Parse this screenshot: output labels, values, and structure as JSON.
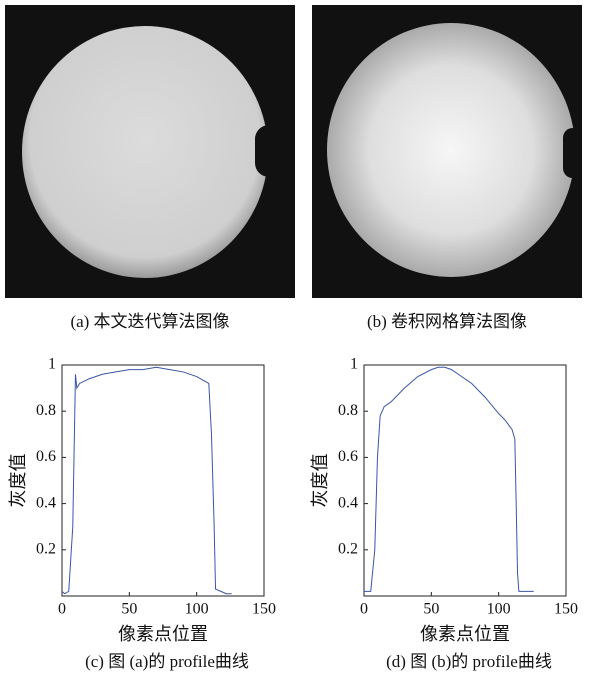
{
  "images": [
    {
      "caption": "(a) 本文迭代算法图像"
    },
    {
      "caption": "(b) 卷积网格算法图像"
    }
  ],
  "chart_data": [
    {
      "type": "line",
      "caption": "(c) 图 (a)的 profile曲线",
      "xlabel": "像素点位置",
      "ylabel": "灰度值",
      "xlim": [
        0,
        150
      ],
      "ylim": [
        0,
        1
      ],
      "xticks": [
        0,
        50,
        100,
        150
      ],
      "yticks": [
        0.2,
        0.4,
        0.6,
        0.8,
        1
      ],
      "series": [
        {
          "color": "#3a55a4",
          "x": [
            0,
            2,
            5,
            8,
            10,
            11,
            13,
            20,
            30,
            40,
            50,
            60,
            70,
            80,
            90,
            100,
            106,
            109,
            111,
            113,
            114,
            118,
            122,
            126
          ],
          "values": [
            0.02,
            0.01,
            0.02,
            0.3,
            0.96,
            0.9,
            0.92,
            0.94,
            0.96,
            0.97,
            0.98,
            0.98,
            0.99,
            0.98,
            0.97,
            0.95,
            0.93,
            0.92,
            0.7,
            0.3,
            0.03,
            0.02,
            0.01,
            0.01
          ]
        }
      ]
    },
    {
      "type": "line",
      "caption": "(d) 图 (b)的 profile曲线",
      "xlabel": "像素点位置",
      "ylabel": "灰度值",
      "xlim": [
        0,
        150
      ],
      "ylim": [
        0,
        1
      ],
      "xticks": [
        0,
        50,
        100,
        150
      ],
      "yticks": [
        0.2,
        0.4,
        0.6,
        0.8,
        1
      ],
      "series": [
        {
          "color": "#3a55a4",
          "x": [
            0,
            5,
            8,
            10,
            12,
            15,
            20,
            30,
            40,
            50,
            55,
            60,
            65,
            70,
            80,
            90,
            100,
            105,
            110,
            112,
            113,
            114,
            115,
            120,
            126
          ],
          "values": [
            0.02,
            0.02,
            0.2,
            0.6,
            0.78,
            0.82,
            0.84,
            0.9,
            0.95,
            0.98,
            0.99,
            0.99,
            0.98,
            0.96,
            0.92,
            0.86,
            0.79,
            0.76,
            0.72,
            0.68,
            0.4,
            0.1,
            0.02,
            0.02,
            0.02
          ]
        }
      ]
    }
  ]
}
